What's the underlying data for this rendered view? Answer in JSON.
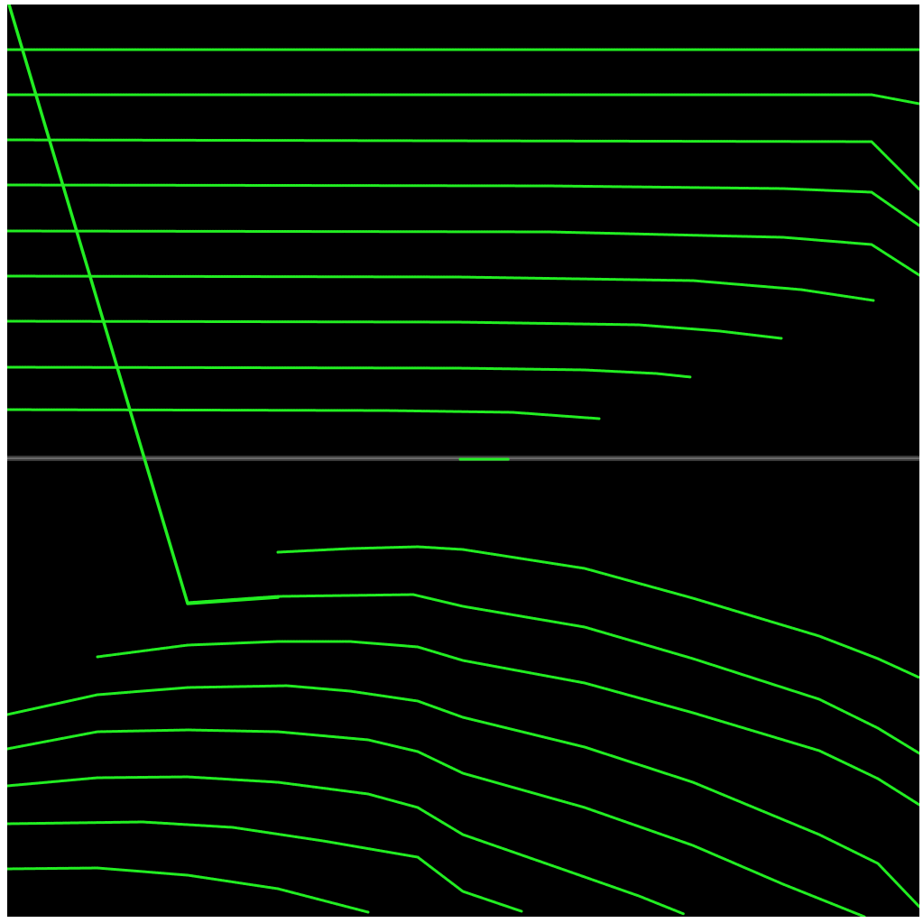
{
  "colors": {
    "background": "#000000",
    "trace": "#22ee22",
    "scanline": "#555555",
    "frame": "#ffffff"
  },
  "chart_data": {
    "type": "line",
    "title": "",
    "xlabel": "",
    "ylabel": "",
    "legend": "none",
    "grid": false
  }
}
